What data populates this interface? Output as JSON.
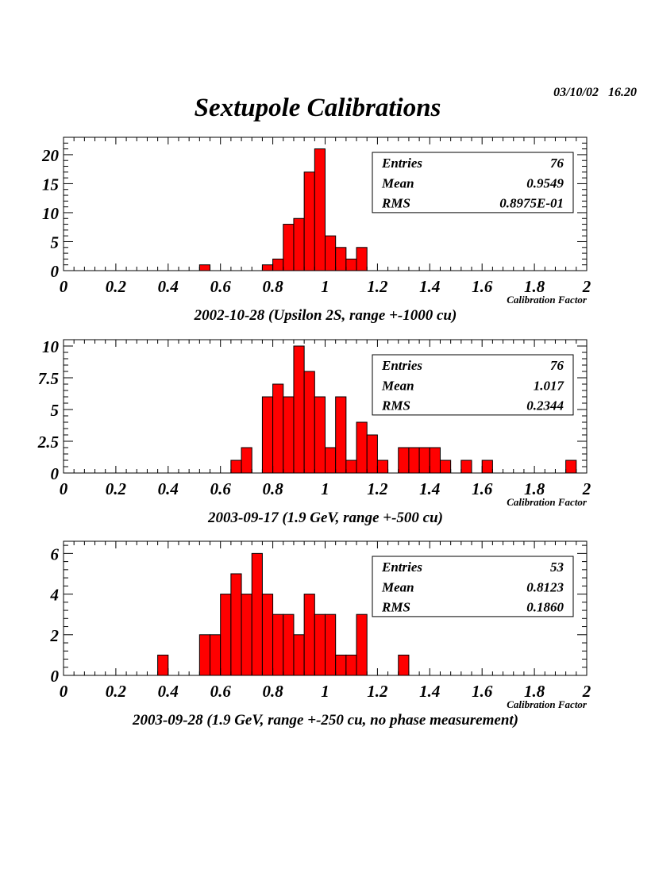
{
  "title": "Sextupole Calibrations",
  "timestamp": "03/10/02   16.20",
  "chart_data": [
    {
      "type": "bar",
      "caption": "2002-10-28 (Upsilon 2S, range +-1000 cu)",
      "xlabel": "Calibration Factor",
      "ylabel": "",
      "xlim": [
        0,
        2
      ],
      "ylim": [
        0,
        23
      ],
      "xticks": [
        "0",
        "0.2",
        "0.4",
        "0.6",
        "0.8",
        "1",
        "1.2",
        "1.4",
        "1.6",
        "1.8",
        "2"
      ],
      "yticks": [
        "0",
        "5",
        "10",
        "15",
        "20"
      ],
      "bin_width": 0.04,
      "bins": [
        {
          "x": 0.52,
          "value": 1
        },
        {
          "x": 0.76,
          "value": 1
        },
        {
          "x": 0.8,
          "value": 2
        },
        {
          "x": 0.84,
          "value": 8
        },
        {
          "x": 0.88,
          "value": 9
        },
        {
          "x": 0.92,
          "value": 17
        },
        {
          "x": 0.96,
          "value": 21
        },
        {
          "x": 1.0,
          "value": 6
        },
        {
          "x": 1.04,
          "value": 4
        },
        {
          "x": 1.08,
          "value": 2
        },
        {
          "x": 1.12,
          "value": 4
        }
      ],
      "stats": [
        {
          "label": "Entries",
          "value": "76"
        },
        {
          "label": "Mean",
          "value": "0.9549"
        },
        {
          "label": "RMS",
          "value": "0.8975E-01"
        }
      ]
    },
    {
      "type": "bar",
      "caption": "2003-09-17 (1.9 GeV, range +-500 cu)",
      "xlabel": "Calibration Factor",
      "ylabel": "",
      "xlim": [
        0,
        2
      ],
      "ylim": [
        0,
        10.5
      ],
      "xticks": [
        "0",
        "0.2",
        "0.4",
        "0.6",
        "0.8",
        "1",
        "1.2",
        "1.4",
        "1.6",
        "1.8",
        "2"
      ],
      "yticks": [
        "0",
        "2.5",
        "5",
        "7.5",
        "10"
      ],
      "bin_width": 0.04,
      "bins": [
        {
          "x": 0.64,
          "value": 1
        },
        {
          "x": 0.68,
          "value": 2
        },
        {
          "x": 0.76,
          "value": 6
        },
        {
          "x": 0.8,
          "value": 7
        },
        {
          "x": 0.84,
          "value": 6
        },
        {
          "x": 0.88,
          "value": 10
        },
        {
          "x": 0.92,
          "value": 8
        },
        {
          "x": 0.96,
          "value": 6
        },
        {
          "x": 1.0,
          "value": 2
        },
        {
          "x": 1.04,
          "value": 6
        },
        {
          "x": 1.08,
          "value": 1
        },
        {
          "x": 1.12,
          "value": 4
        },
        {
          "x": 1.16,
          "value": 3
        },
        {
          "x": 1.2,
          "value": 1
        },
        {
          "x": 1.28,
          "value": 2
        },
        {
          "x": 1.32,
          "value": 2
        },
        {
          "x": 1.36,
          "value": 2
        },
        {
          "x": 1.4,
          "value": 2
        },
        {
          "x": 1.44,
          "value": 1
        },
        {
          "x": 1.52,
          "value": 1
        },
        {
          "x": 1.6,
          "value": 1
        },
        {
          "x": 1.92,
          "value": 1
        }
      ],
      "stats": [
        {
          "label": "Entries",
          "value": "76"
        },
        {
          "label": "Mean",
          "value": "1.017"
        },
        {
          "label": "RMS",
          "value": "0.2344"
        }
      ]
    },
    {
      "type": "bar",
      "caption": "2003-09-28 (1.9 GeV, range +-250 cu, no phase measurement)",
      "xlabel": "Calibration Factor",
      "ylabel": "",
      "xlim": [
        0,
        2
      ],
      "ylim": [
        0,
        6.6
      ],
      "xticks": [
        "0",
        "0.2",
        "0.4",
        "0.6",
        "0.8",
        "1",
        "1.2",
        "1.4",
        "1.6",
        "1.8",
        "2"
      ],
      "yticks": [
        "0",
        "2",
        "4",
        "6"
      ],
      "bin_width": 0.04,
      "bins": [
        {
          "x": 0.36,
          "value": 1
        },
        {
          "x": 0.52,
          "value": 2
        },
        {
          "x": 0.56,
          "value": 2
        },
        {
          "x": 0.6,
          "value": 4
        },
        {
          "x": 0.64,
          "value": 5
        },
        {
          "x": 0.68,
          "value": 4
        },
        {
          "x": 0.72,
          "value": 6
        },
        {
          "x": 0.76,
          "value": 4
        },
        {
          "x": 0.8,
          "value": 3
        },
        {
          "x": 0.84,
          "value": 3
        },
        {
          "x": 0.88,
          "value": 2
        },
        {
          "x": 0.92,
          "value": 4
        },
        {
          "x": 0.96,
          "value": 3
        },
        {
          "x": 1.0,
          "value": 3
        },
        {
          "x": 1.04,
          "value": 1
        },
        {
          "x": 1.08,
          "value": 1
        },
        {
          "x": 1.12,
          "value": 3
        },
        {
          "x": 1.28,
          "value": 1
        }
      ],
      "stats": [
        {
          "label": "Entries",
          "value": "53"
        },
        {
          "label": "Mean",
          "value": "0.8123"
        },
        {
          "label": "RMS",
          "value": "0.1860"
        }
      ]
    }
  ],
  "colors": {
    "fill": "#ff0000",
    "outline": "#000000",
    "background": "#ffffff"
  }
}
